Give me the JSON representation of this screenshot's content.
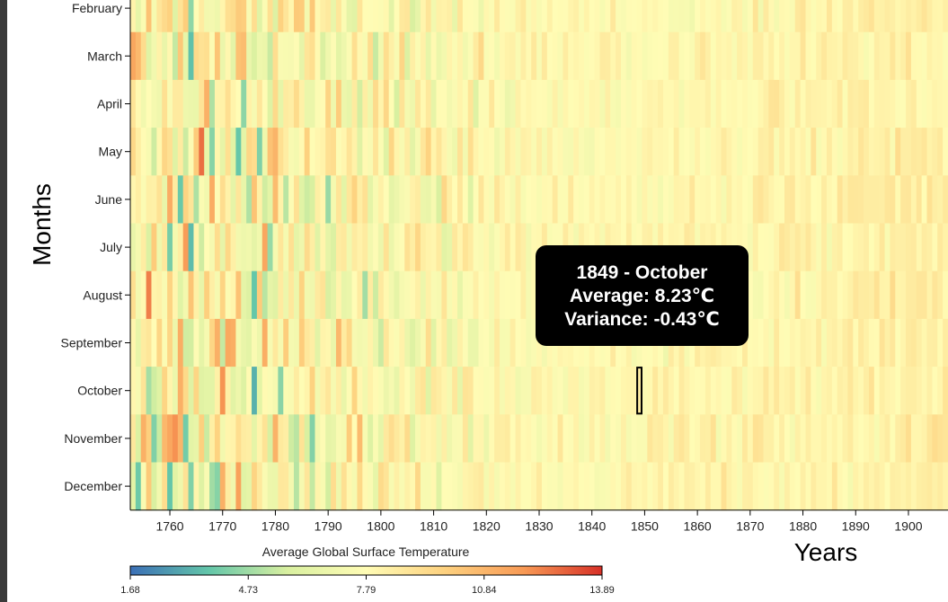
{
  "chart_data": {
    "type": "heatmap",
    "ylabel": "Months",
    "xlabel": "Years",
    "months": [
      "February",
      "March",
      "April",
      "May",
      "June",
      "July",
      "August",
      "September",
      "October",
      "November",
      "December"
    ],
    "x_ticks": [
      1760,
      1770,
      1780,
      1790,
      1800,
      1810,
      1820,
      1830,
      1840,
      1850,
      1860,
      1870,
      1880,
      1890,
      1900
    ],
    "x_range": [
      1753,
      1907
    ],
    "legend": {
      "title": "Average Global Surface Temperature",
      "ticks": [
        "1.68",
        "4.73",
        "7.79",
        "10.84",
        "13.89"
      ],
      "min": 1.68,
      "max": 13.89,
      "colors": [
        "#3b6fb6",
        "#63c6a9",
        "#d9f0a0",
        "#fffcb5",
        "#fdd17f",
        "#f89a55",
        "#d73027"
      ]
    },
    "highlighted_cell": {
      "year": 1849,
      "month": "October"
    }
  },
  "tooltip": {
    "line1": "1849 - October",
    "line2": "Average: 8.23℃",
    "line3": "Variance: -0.43℃"
  }
}
